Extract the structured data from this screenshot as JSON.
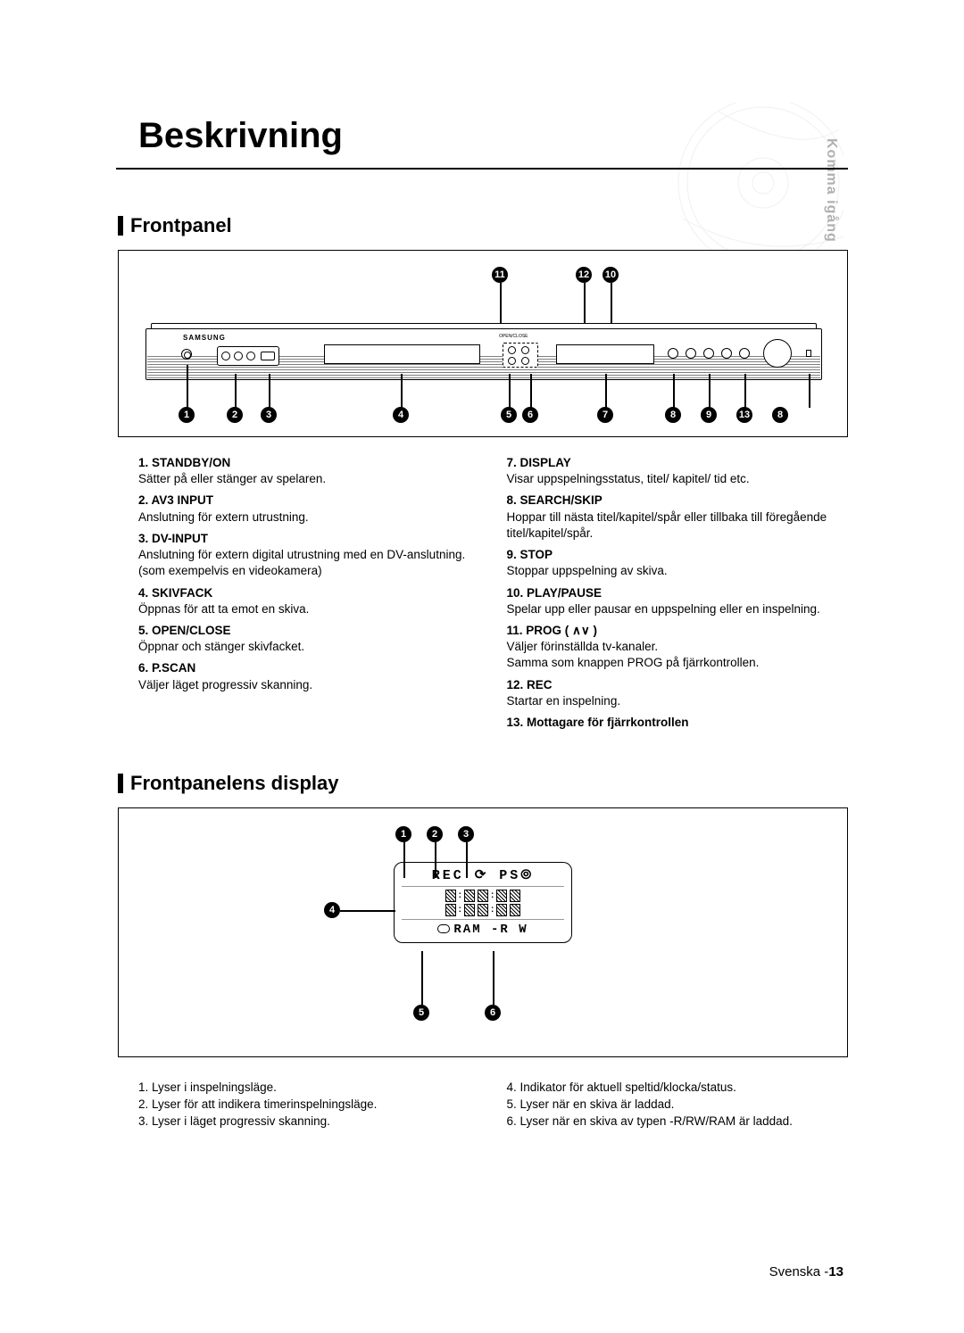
{
  "sideTab": "Komma igång",
  "title": "Beskrivning",
  "section1": "Frontpanel",
  "section2": "Frontpanelens display",
  "brand": "SAMSUNG",
  "ocLabel": "OPEN/CLOSE",
  "callouts_top": {
    "c11": "11",
    "c12": "12",
    "c10": "10"
  },
  "callouts_bot": {
    "c1": "1",
    "c2": "2",
    "c3": "3",
    "c4": "4",
    "c5": "5",
    "c6": "6",
    "c7": "7",
    "c8": "8",
    "c9": "9",
    "c13": "13",
    "c8b": "8"
  },
  "legend1_left": [
    {
      "n": "1.",
      "lbl": "STANDBY/ON",
      "desc": "Sätter på eller stänger av spelaren."
    },
    {
      "n": "2.",
      "lbl": "AV3 INPUT",
      "desc": "Anslutning för extern utrustning."
    },
    {
      "n": "3.",
      "lbl": "DV-INPUT",
      "desc": "Anslutning för extern digital utrustning med en DV-anslutning.\n(som exempelvis en videokamera)"
    },
    {
      "n": "4.",
      "lbl": "SKIVFACK",
      "desc": "Öppnas för att ta emot en skiva."
    },
    {
      "n": "5.",
      "lbl": "OPEN/CLOSE",
      "desc": "Öppnar och stänger skivfacket."
    },
    {
      "n": "6.",
      "lbl": "P.SCAN",
      "desc": "Väljer läget progressiv skanning."
    }
  ],
  "legend1_right": [
    {
      "n": "7.",
      "lbl": "DISPLAY",
      "desc": "Visar uppspelningsstatus, titel/ kapitel/ tid etc."
    },
    {
      "n": "8.",
      "lbl": "SEARCH/SKIP",
      "desc": "Hoppar till nästa titel/kapitel/spår eller tillbaka till föregående titel/kapitel/spår."
    },
    {
      "n": "9.",
      "lbl": "STOP",
      "desc": "Stoppar uppspelning av skiva."
    },
    {
      "n": "10.",
      "lbl": "PLAY/PAUSE",
      "desc": "Spelar upp eller pausar en uppspelning eller en inspelning."
    },
    {
      "n": "11.",
      "lbl": "PROG ( ∧∨ )",
      "desc": "Väljer förinställda tv-kanaler.\nSamma som knappen PROG på fjärrkontrollen."
    },
    {
      "n": "12.",
      "lbl": "REC",
      "desc": "Startar en inspelning."
    },
    {
      "n": "13.",
      "lbl": "Mottagare för fjärrkontrollen",
      "desc": ""
    }
  ],
  "disp_callouts": {
    "c1": "1",
    "c2": "2",
    "c3": "3",
    "c4": "4",
    "c5": "5",
    "c6": "6"
  },
  "disp_top": "REC ⟳ PS⦾",
  "disp_bot": "RAM -R W",
  "legend2_left": [
    "1. Lyser i inspelningsläge.",
    "2. Lyser för att indikera timerinspelningsläge.",
    "3. Lyser i läget progressiv skanning."
  ],
  "legend2_right": [
    "4. Indikator för aktuell speltid/klocka/status.",
    "5. Lyser när en skiva är laddad.",
    "6. Lyser när en skiva av typen -R/RW/RAM är laddad."
  ],
  "footer": {
    "lang": "Svenska -",
    "page": "13"
  }
}
